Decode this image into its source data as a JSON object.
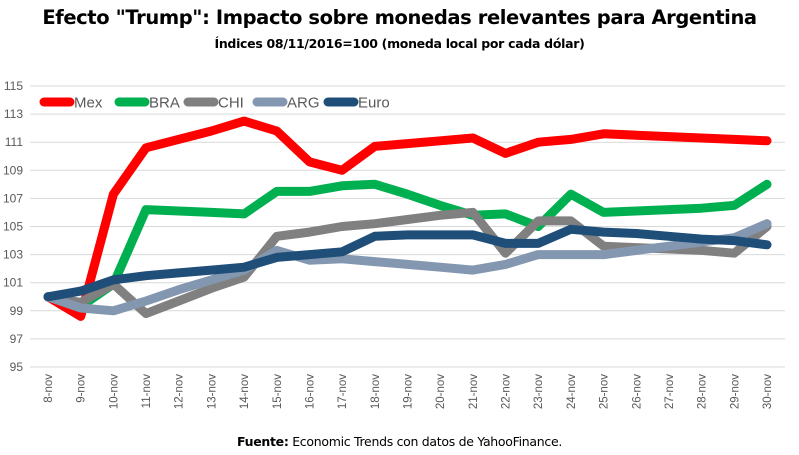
{
  "chart_data": {
    "type": "line",
    "title": "Efecto \"Trump\": Impacto sobre monedas relevantes para Argentina",
    "subtitle": "Índices 08/11/2016=100 (moneda local por cada dólar)",
    "xlabel": "",
    "ylabel": "",
    "ylim": [
      95,
      115
    ],
    "yticks": [
      95,
      97,
      99,
      101,
      103,
      105,
      107,
      109,
      111,
      113,
      115
    ],
    "grid": true,
    "legend_position": "top-left",
    "categories": [
      "8-nov",
      "9-nov",
      "10-nov",
      "11-nov",
      "12-nov",
      "13-nov",
      "14-nov",
      "15-nov",
      "16-nov",
      "17-nov",
      "18-nov",
      "19-nov",
      "20-nov",
      "21-nov",
      "22-nov",
      "23-nov",
      "24-nov",
      "25-nov",
      "26-nov",
      "27-nov",
      "28-nov",
      "29-nov",
      "30-nov"
    ],
    "series": [
      {
        "name": "Mex",
        "color": "#ff0000",
        "values": [
          100,
          98.6,
          107.3,
          110.6,
          111.2,
          111.8,
          112.5,
          111.8,
          109.6,
          109.0,
          110.7,
          110.9,
          111.1,
          111.3,
          110.2,
          111.0,
          111.2,
          111.6,
          111.5,
          111.4,
          111.3,
          111.2,
          111.1
        ]
      },
      {
        "name": "BRA",
        "color": "#00b050",
        "values": [
          100,
          99.3,
          100.9,
          106.2,
          106.1,
          106.0,
          105.9,
          107.5,
          107.5,
          107.9,
          108.0,
          107.3,
          106.5,
          105.8,
          105.9,
          105.0,
          107.3,
          106.0,
          106.1,
          106.2,
          106.3,
          106.5,
          108.0
        ]
      },
      {
        "name": "CHI",
        "color": "#808080",
        "values": [
          100,
          99.6,
          100.9,
          98.8,
          99.7,
          100.6,
          101.4,
          104.3,
          104.6,
          105.0,
          105.2,
          105.5,
          105.8,
          106.0,
          103.1,
          105.4,
          105.4,
          103.6,
          103.5,
          103.4,
          103.3,
          103.1,
          105.0
        ]
      },
      {
        "name": "ARG",
        "color": "#8497b0",
        "values": [
          100,
          99.2,
          99.0,
          99.7,
          100.5,
          101.2,
          101.9,
          103.3,
          102.6,
          102.7,
          102.5,
          102.3,
          102.1,
          101.9,
          102.3,
          103.0,
          103.0,
          103.0,
          103.3,
          103.6,
          103.9,
          104.2,
          105.2
        ]
      },
      {
        "name": "Euro",
        "color": "#1f4e79",
        "values": [
          100,
          100.4,
          101.2,
          101.5,
          101.7,
          101.9,
          102.1,
          102.8,
          103.0,
          103.2,
          104.3,
          104.4,
          104.4,
          104.4,
          103.8,
          103.8,
          104.8,
          104.6,
          104.5,
          104.3,
          104.1,
          104.0,
          103.7
        ]
      }
    ]
  },
  "header": {
    "title": "Efecto \"Trump\": Impacto sobre monedas relevantes para Argentina",
    "subtitle": "Índices 08/11/2016=100 (moneda local por cada dólar)"
  },
  "footer": {
    "source_label": "Fuente:",
    "source_text": " Economic Trends con datos de YahooFinance."
  },
  "colors": {
    "gridline": "#d9d9d9",
    "axis_text": "#595959"
  }
}
